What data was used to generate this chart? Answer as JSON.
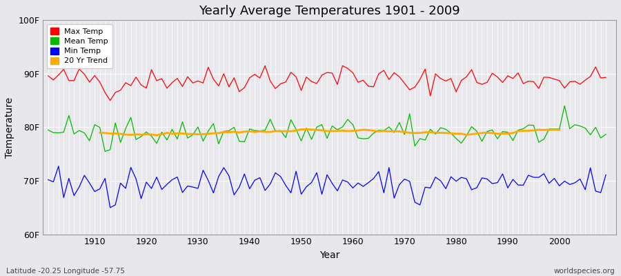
{
  "title": "Yearly Average Temperatures 1901 - 2009",
  "xlabel": "Year",
  "ylabel": "Temperature",
  "start_year": 1901,
  "end_year": 2009,
  "ylim": [
    60,
    100
  ],
  "yticks": [
    60,
    70,
    80,
    90,
    100
  ],
  "ytick_labels": [
    "60F",
    "70F",
    "80F",
    "90F",
    "100F"
  ],
  "xticks": [
    1910,
    1920,
    1930,
    1940,
    1950,
    1960,
    1970,
    1980,
    1990,
    2000
  ],
  "plot_bg_color": "#e8e8ec",
  "grid_color": "#ffffff",
  "max_temp_color": "#ff0000",
  "mean_temp_color": "#00bb00",
  "min_temp_color": "#0000ff",
  "trend_color": "#ffaa00",
  "legend_labels": [
    "Max Temp",
    "Mean Temp",
    "Min Temp",
    "20 Yr Trend"
  ],
  "footer_left": "Latitude -20.25 Longitude -57.75",
  "footer_right": "worldspecies.org",
  "max_temp_base": 89.0,
  "mean_temp_base": 79.0,
  "min_temp_base": 69.5
}
